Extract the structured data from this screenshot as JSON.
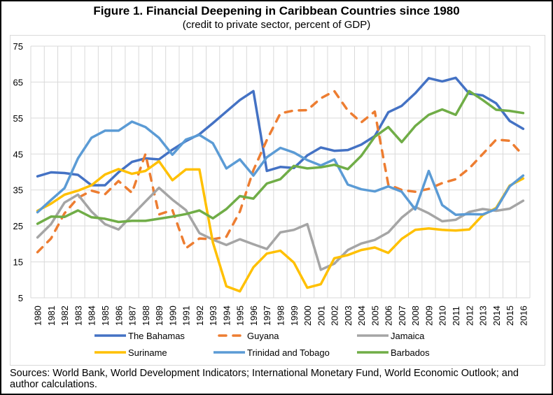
{
  "title": "Figure 1. Financial Deepening in Caribbean Countries since 1980",
  "subtitle": "(credit to private sector, percent of GDP)",
  "sources": "Sources: World Bank, World Development Indicators; International Monetary Fund, World Economic Outlook; and author calculations.",
  "chart_data": {
    "type": "line",
    "title": "Figure 1. Financial Deepening in Caribbean Countries since 1980",
    "subtitle": "(credit to private sector, percent of GDP)",
    "xlabel": "",
    "ylabel": "",
    "ylim": [
      5,
      75
    ],
    "yticks": [
      5,
      15,
      25,
      35,
      45,
      55,
      65,
      75
    ],
    "grid": true,
    "legend_position": "bottom",
    "categories": [
      "1980",
      "1981",
      "1982",
      "1983",
      "1984",
      "1985",
      "1986",
      "1987",
      "1988",
      "1989",
      "1990",
      "1991",
      "1992",
      "1993",
      "1994",
      "1995",
      "1996",
      "1997",
      "1998",
      "1999",
      "2000",
      "2001",
      "2002",
      "2003",
      "2004",
      "2005",
      "2006",
      "2007",
      "2008",
      "2009",
      "2010",
      "2011",
      "2012",
      "2013",
      "2014",
      "2015",
      "2016"
    ],
    "series": [
      {
        "name": "The Bahamas",
        "color": "#4472C4",
        "dash": false,
        "values": [
          38.8,
          39.9,
          39.7,
          39.2,
          36.3,
          36.3,
          39.9,
          42.8,
          43.8,
          43.5,
          46.2,
          48.6,
          50.5,
          53.6,
          56.8,
          60.0,
          62.5,
          40.3,
          41.4,
          41.1,
          44.6,
          46.8,
          45.9,
          46.1,
          47.6,
          50.0,
          56.6,
          58.4,
          61.9,
          66.1,
          65.2,
          66.2,
          61.8,
          61.3,
          59.1,
          54.2,
          52.0
        ]
      },
      {
        "name": "Guyana",
        "color": "#ED7D31",
        "dash": true,
        "values": [
          17.7,
          21.5,
          28.5,
          32.8,
          34.8,
          33.8,
          37.5,
          34.2,
          45.0,
          28.2,
          29.4,
          18.8,
          21.5,
          21.3,
          22.0,
          29.0,
          40.5,
          48.9,
          56.3,
          57.1,
          57.2,
          60.5,
          62.5,
          57.1,
          53.8,
          56.8,
          36.5,
          35.0,
          34.5,
          35.3,
          36.9,
          38.0,
          41.0,
          45.0,
          49.0,
          48.7,
          44.6
        ]
      },
      {
        "name": "Jamaica",
        "color": "#A5A5A5",
        "dash": false,
        "values": [
          21.8,
          25.5,
          31.5,
          33.7,
          29.0,
          25.5,
          24.0,
          27.9,
          31.8,
          35.6,
          32.3,
          29.4,
          23.0,
          21.2,
          19.7,
          21.3,
          19.9,
          18.6,
          23.2,
          23.9,
          25.5,
          12.8,
          14.5,
          18.3,
          20.1,
          21.1,
          23.2,
          27.3,
          30.3,
          28.5,
          26.3,
          26.7,
          28.9,
          29.7,
          29.2,
          29.8,
          32.0
        ]
      },
      {
        "name": "Suriname",
        "color": "#FFC000",
        "dash": false,
        "values": [
          29.2,
          31.2,
          33.7,
          34.8,
          36.3,
          39.3,
          40.8,
          39.5,
          40.3,
          43.0,
          37.7,
          40.7,
          40.7,
          20.4,
          8.2,
          6.8,
          13.5,
          17.3,
          18.1,
          14.8,
          7.8,
          8.8,
          16.0,
          16.9,
          18.3,
          19.0,
          17.5,
          21.4,
          23.9,
          24.3,
          23.9,
          23.7,
          24.0,
          28.0,
          30.0,
          36.2,
          38.2
        ]
      },
      {
        "name": "Trinidad and Tobago",
        "color": "#5B9BD5",
        "dash": false,
        "values": [
          28.8,
          32.2,
          35.5,
          43.8,
          49.5,
          51.5,
          51.5,
          54.0,
          52.5,
          49.5,
          44.8,
          49.0,
          50.3,
          48.0,
          41.0,
          43.5,
          39.0,
          44.1,
          46.7,
          45.4,
          43.3,
          41.8,
          43.5,
          36.5,
          35.2,
          34.6,
          36.0,
          34.5,
          29.6,
          40.3,
          30.8,
          28.1,
          28.3,
          28.2,
          29.7,
          36.0,
          39.0
        ]
      },
      {
        "name": "Barbados",
        "color": "#70AD47",
        "dash": false,
        "values": [
          25.6,
          27.6,
          27.5,
          29.3,
          27.4,
          27.0,
          26.1,
          26.4,
          26.4,
          27.0,
          27.6,
          28.3,
          29.3,
          27.1,
          29.7,
          33.3,
          32.6,
          36.8,
          38.0,
          41.7,
          41.0,
          41.3,
          42.0,
          40.8,
          44.5,
          49.8,
          52.5,
          48.3,
          52.8,
          55.9,
          57.4,
          55.9,
          62.5,
          60.0,
          57.3,
          57.0,
          56.4
        ]
      }
    ]
  }
}
